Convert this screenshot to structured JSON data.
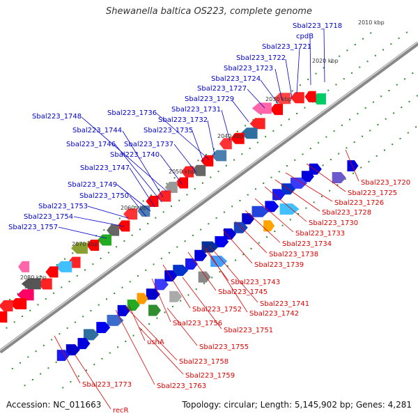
{
  "title": "Shewanella baltica OS223, complete genome",
  "footer": {
    "accession": "Accession: NC_011663",
    "topology": "Topology: circular; Length: 5,145,902 bp; Genes: 4,281"
  },
  "colors": {
    "forward_label": "#0000cc",
    "reverse_label": "#dd0000",
    "backbone": "#888888",
    "tick": "#2e8b2e"
  },
  "kbp_ticks": [
    "2010 kbp",
    "2020 kbp",
    "2030 kbp",
    "2040 kbp",
    "2050 kbp",
    "2060 kbp",
    "2070 kbp",
    "2080 kbp"
  ],
  "forward_labels": [
    "Sbal223_1718",
    "cpdB",
    "Sbal223_1721",
    "Sbal223_1722",
    "Sbal223_1723",
    "Sbal223_1724",
    "Sbal223_1727",
    "Sbal223_1729",
    "Sbal223_1731",
    "Sbal223_1732",
    "Sbal223_1736",
    "Sbal223_1735",
    "Sbal223_1748",
    "Sbal223_1744",
    "Sbal223_1737",
    "Sbal223_1746",
    "Sbal223_1740",
    "Sbal223_1747",
    "Sbal223_1749",
    "Sbal223_1750",
    "Sbal223_1753",
    "Sbal223_1754",
    "Sbal223_1757"
  ],
  "reverse_labels": [
    "Sbal223_1720",
    "Sbal223_1725",
    "Sbal223_1726",
    "Sbal223_1728",
    "Sbal223_1730",
    "Sbal223_1733",
    "Sbal223_1734",
    "Sbal223_1738",
    "Sbal223_1739",
    "Sbal223_1743",
    "Sbal223_1745",
    "Sbal223_1741",
    "Sbal223_1742",
    "Sbal223_1752",
    "Sbal223_1756",
    "Sbal223_1751",
    "ushA",
    "Sbal223_1755",
    "Sbal223_1758",
    "Sbal223_1759",
    "Sbal223_1763",
    "Sbal223_1773",
    "recR"
  ]
}
